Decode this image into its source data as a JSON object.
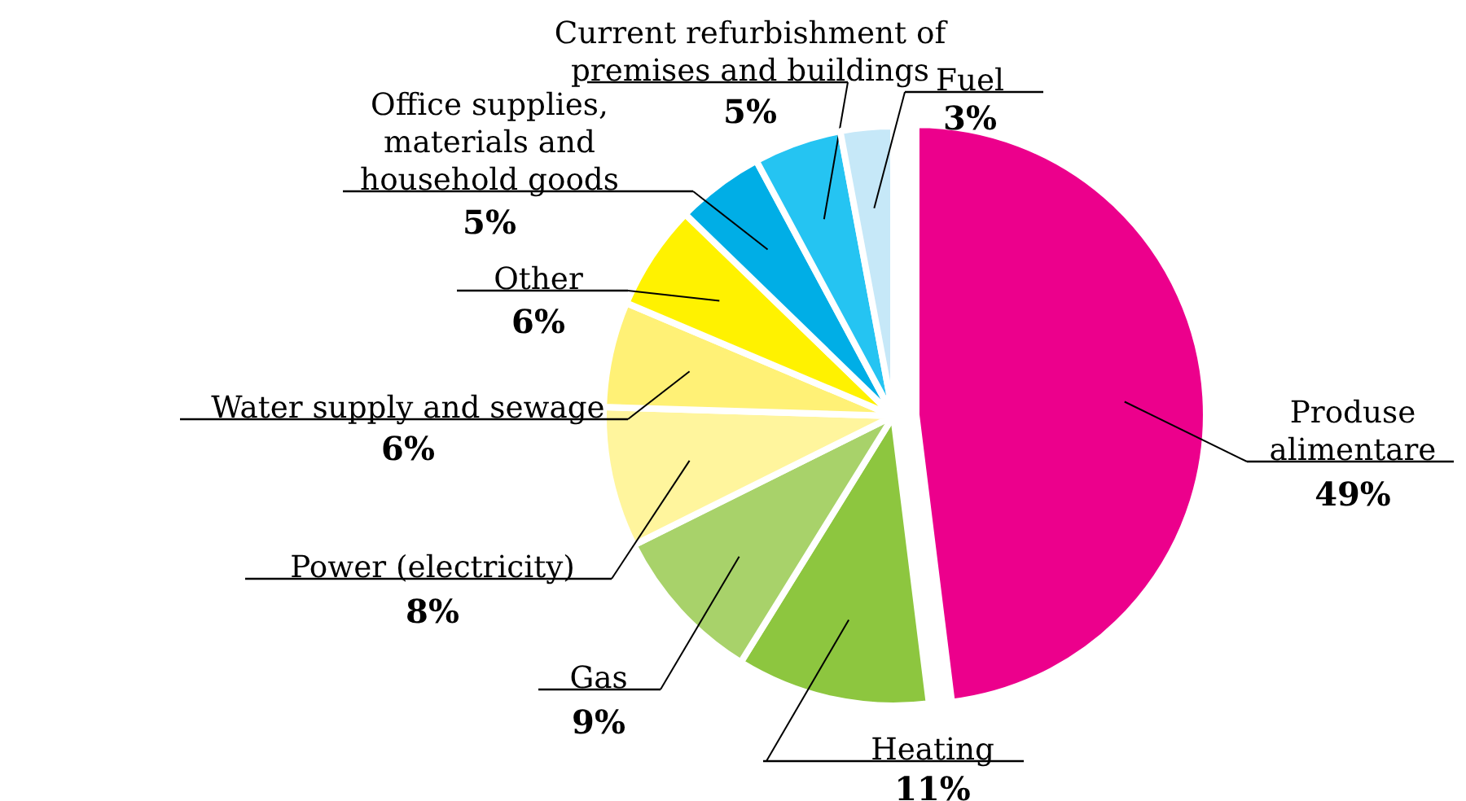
{
  "chart_data": {
    "type": "pie",
    "categories": [
      "Produse\nalimentare",
      "Heating",
      "Gas",
      "Power (electricity)",
      "Water supply and sewage",
      "Other",
      "Office supplies,\nmaterials and\nhousehold goods",
      "Current refurbishment of\npremises and buildings",
      "Fuel"
    ],
    "values": [
      49,
      11,
      9,
      8,
      6,
      6,
      5,
      5,
      3
    ],
    "value_labels": [
      "49%",
      "11%",
      "9%",
      "8%",
      "6%",
      "6%",
      "5%",
      "5%",
      "3%"
    ],
    "colors": [
      "#ec008c",
      "#8dc63f",
      "#a8d26a",
      "#fff59d",
      "#fff176",
      "#fff200",
      "#00aee6",
      "#25c4f2",
      "#c6e8f8"
    ],
    "legend": false
  }
}
